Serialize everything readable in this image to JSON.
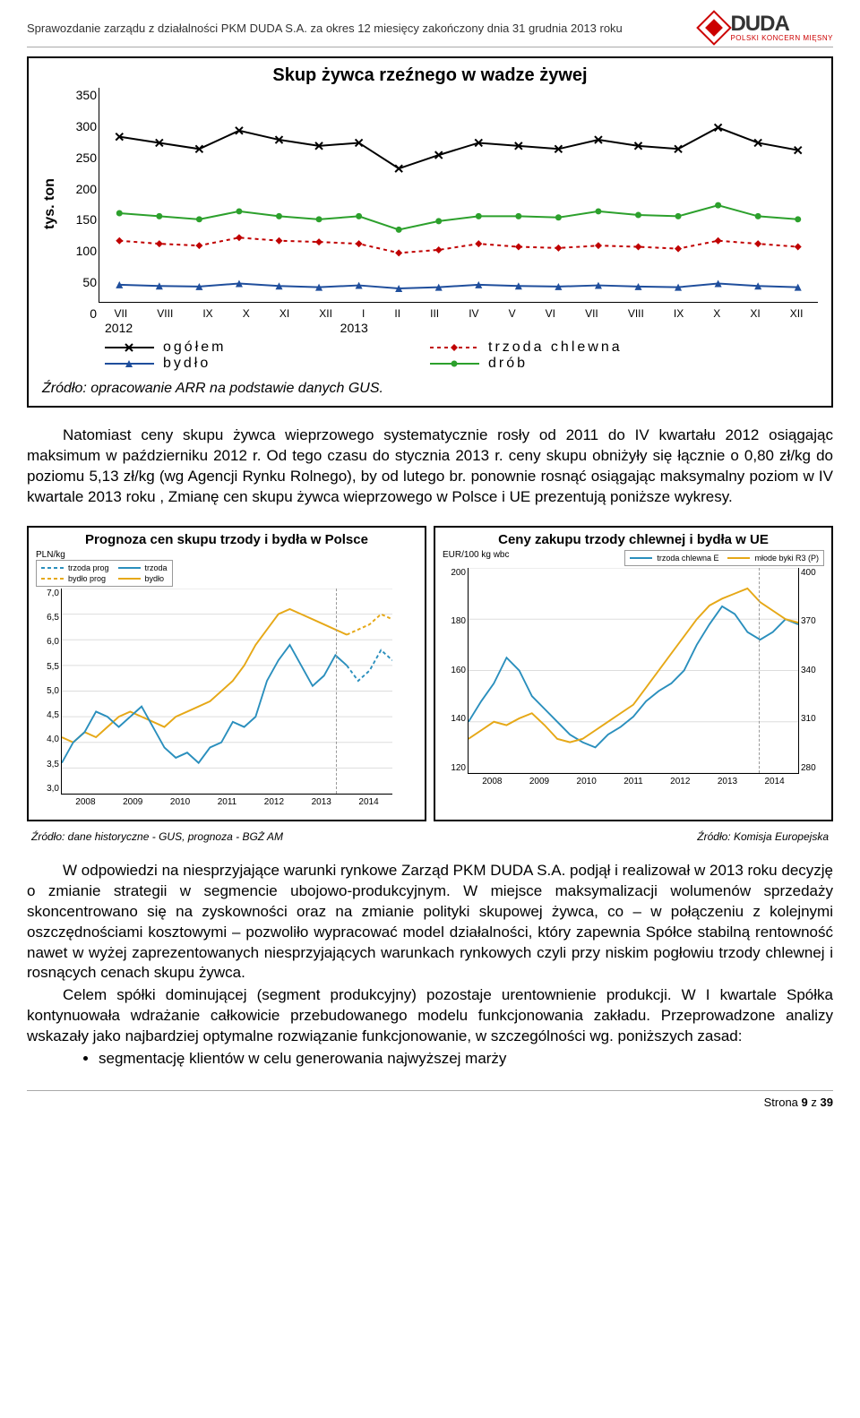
{
  "header": {
    "doc_title": "Sprawozdanie zarządu z działalności PKM DUDA S.A. za okres 12 miesięcy zakończony dnia 31 grudnia 2013 roku",
    "logo_main": "DUDA",
    "logo_sub": "POLSKI KONCERN MIĘSNY"
  },
  "chart1": {
    "type": "line",
    "title": "Skup żywca rzeźnego w wadze żywej",
    "y_label": "tys. ton",
    "y_ticks": [
      "350",
      "300",
      "250",
      "200",
      "150",
      "100",
      "50",
      "0"
    ],
    "ylim": [
      0,
      350
    ],
    "x_labels": [
      "VII",
      "VIII",
      "IX",
      "X",
      "XI",
      "XII",
      "I",
      "II",
      "III",
      "IV",
      "V",
      "VI",
      "VII",
      "VIII",
      "IX",
      "X",
      "XI",
      "XII"
    ],
    "year1": "2012",
    "year2": "2013",
    "legend": [
      {
        "label": "ogółem",
        "color": "#000000",
        "marker": "x",
        "dash": "0"
      },
      {
        "label": "trzoda chlewna",
        "color": "#c00000",
        "marker": "diamond",
        "dash": "4,4"
      },
      {
        "label": "bydło",
        "color": "#1f4e9c",
        "marker": "triangle",
        "dash": "0"
      },
      {
        "label": "drób",
        "color": "#2ca02c",
        "marker": "circle",
        "dash": "0"
      }
    ],
    "series": {
      "ogolem": [
        270,
        260,
        250,
        280,
        265,
        255,
        260,
        218,
        240,
        260,
        255,
        250,
        265,
        255,
        250,
        285,
        260,
        248
      ],
      "trzoda": [
        100,
        95,
        92,
        105,
        100,
        98,
        95,
        80,
        85,
        95,
        90,
        88,
        92,
        90,
        87,
        100,
        95,
        90
      ],
      "bydlo": [
        28,
        26,
        25,
        30,
        26,
        24,
        27,
        22,
        24,
        28,
        26,
        25,
        27,
        25,
        24,
        30,
        26,
        24
      ],
      "drob": [
        145,
        140,
        135,
        148,
        140,
        135,
        140,
        118,
        132,
        140,
        140,
        138,
        148,
        142,
        140,
        158,
        140,
        135
      ]
    },
    "source": "Źródło: opracowanie ARR na podstawie danych GUS."
  },
  "para1": "Natomiast ceny skupu żywca wieprzowego systematycznie rosły od 2011 do IV kwartału 2012 osiągając maksimum w październiku 2012 r. Od tego czasu do stycznia 2013 r. ceny skupu obniżyły się łącznie o 0,80 zł/kg do poziomu 5,13 zł/kg (wg Agencji Rynku Rolnego), by od lutego br. ponownie rosnąć osiągając maksymalny poziom w IV kwartale 2013 roku ,   Zmianę cen skupu żywca wieprzowego w Polsce i UE prezentują poniższe wykresy.",
  "chart2": {
    "type": "line",
    "title": "Prognoza cen skupu trzody i bydła w Polsce",
    "unit": "PLN/kg",
    "legend": [
      {
        "label": "trzoda prog",
        "color": "#2a8fbd",
        "dash": "4,3"
      },
      {
        "label": "trzoda",
        "color": "#2a8fbd",
        "dash": "0"
      },
      {
        "label": "bydło prog",
        "color": "#e6a817",
        "dash": "4,3"
      },
      {
        "label": "bydło",
        "color": "#e6a817",
        "dash": "0"
      }
    ],
    "y_ticks": [
      "7,0",
      "6,5",
      "6,0",
      "5,5",
      "5,0",
      "4,5",
      "4,0",
      "3,5",
      "3,0"
    ],
    "ylim": [
      3.0,
      7.0
    ],
    "x_labels": [
      "2008",
      "2009",
      "2010",
      "2011",
      "2012",
      "2013",
      "2014"
    ],
    "series": {
      "trzoda": [
        3.6,
        4.0,
        4.2,
        4.6,
        4.5,
        4.3,
        4.5,
        4.7,
        4.3,
        3.9,
        3.7,
        3.8,
        3.6,
        3.9,
        4.0,
        4.4,
        4.3,
        4.5,
        5.2,
        5.6,
        5.9,
        5.5,
        5.1,
        5.3,
        5.7,
        5.5
      ],
      "trzoda_prog": [
        5.5,
        5.2,
        5.4,
        5.8,
        5.6
      ],
      "bydlo": [
        4.1,
        4.0,
        4.2,
        4.1,
        4.3,
        4.5,
        4.6,
        4.5,
        4.4,
        4.3,
        4.5,
        4.6,
        4.7,
        4.8,
        5.0,
        5.2,
        5.5,
        5.9,
        6.2,
        6.5,
        6.6,
        6.5,
        6.4,
        6.3,
        6.2,
        6.1
      ],
      "bydlo_prog": [
        6.1,
        6.2,
        6.3,
        6.5,
        6.4
      ]
    },
    "source": "Źródło: dane historyczne - GUS, prognoza - BGŻ AM"
  },
  "chart3": {
    "type": "line",
    "title": "Ceny zakupu trzody chlewnej i bydła w UE",
    "unit": "EUR/100 kg wbc",
    "legend": [
      {
        "label": "trzoda chlewna E",
        "color": "#2a8fbd",
        "dash": "0"
      },
      {
        "label": "młode byki R3 (P)",
        "color": "#e6a817",
        "dash": "0"
      }
    ],
    "y_ticks_left": [
      "200",
      "180",
      "160",
      "140",
      "120"
    ],
    "ylim_left": [
      120,
      200
    ],
    "y_ticks_right": [
      "400",
      "370",
      "340",
      "310",
      "280"
    ],
    "ylim_right": [
      280,
      400
    ],
    "x_labels": [
      "2008",
      "2009",
      "2010",
      "2011",
      "2012",
      "2013",
      "2014"
    ],
    "series": {
      "trzoda": [
        140,
        148,
        155,
        165,
        160,
        150,
        145,
        140,
        135,
        132,
        130,
        135,
        138,
        142,
        148,
        152,
        155,
        160,
        170,
        178,
        185,
        182,
        175,
        172,
        175,
        180,
        178
      ],
      "byki": [
        300,
        305,
        310,
        308,
        312,
        315,
        308,
        300,
        298,
        300,
        305,
        310,
        315,
        320,
        330,
        340,
        350,
        360,
        370,
        378,
        382,
        385,
        388,
        380,
        375,
        370,
        368
      ]
    },
    "source": "Źródło: Komisja Europejska"
  },
  "para2": "W odpowiedzi na niesprzyjające warunki rynkowe Zarząd PKM DUDA S.A. podjął i realizował w 2013 roku decyzję o zmianie strategii w segmencie ubojowo-produkcyjnym. W miejsce maksymalizacji wolumenów sprzedaży skoncentrowano się na zyskowności oraz na zmianie polityki skupowej żywca, co – w połączeniu z kolejnymi oszczędnościami kosztowymi – pozwoliło wypracować model działalności, który zapewnia Spółce stabilną rentowność nawet w wyżej zaprezentowanych niesprzyjających warunkach rynkowych czyli przy niskim pogłowiu trzody chlewnej i rosnących cenach skupu żywca.",
  "para3": "Celem spółki dominującej (segment produkcyjny) pozostaje urentownienie produkcji. W I kwartale Spółka kontynuowała wdrażanie całkowicie przebudowanego modelu funkcjonowania zakładu. Przeprowadzone analizy wskazały jako najbardziej optymalne rozwiązanie funkcjonowanie, w szczególności wg. poniższych zasad:",
  "bullet1": "segmentację klientów w celu generowania najwyższej marży",
  "footer": {
    "page_label": "Strona",
    "page_num": "9",
    "page_of": "z",
    "page_total": "39"
  }
}
